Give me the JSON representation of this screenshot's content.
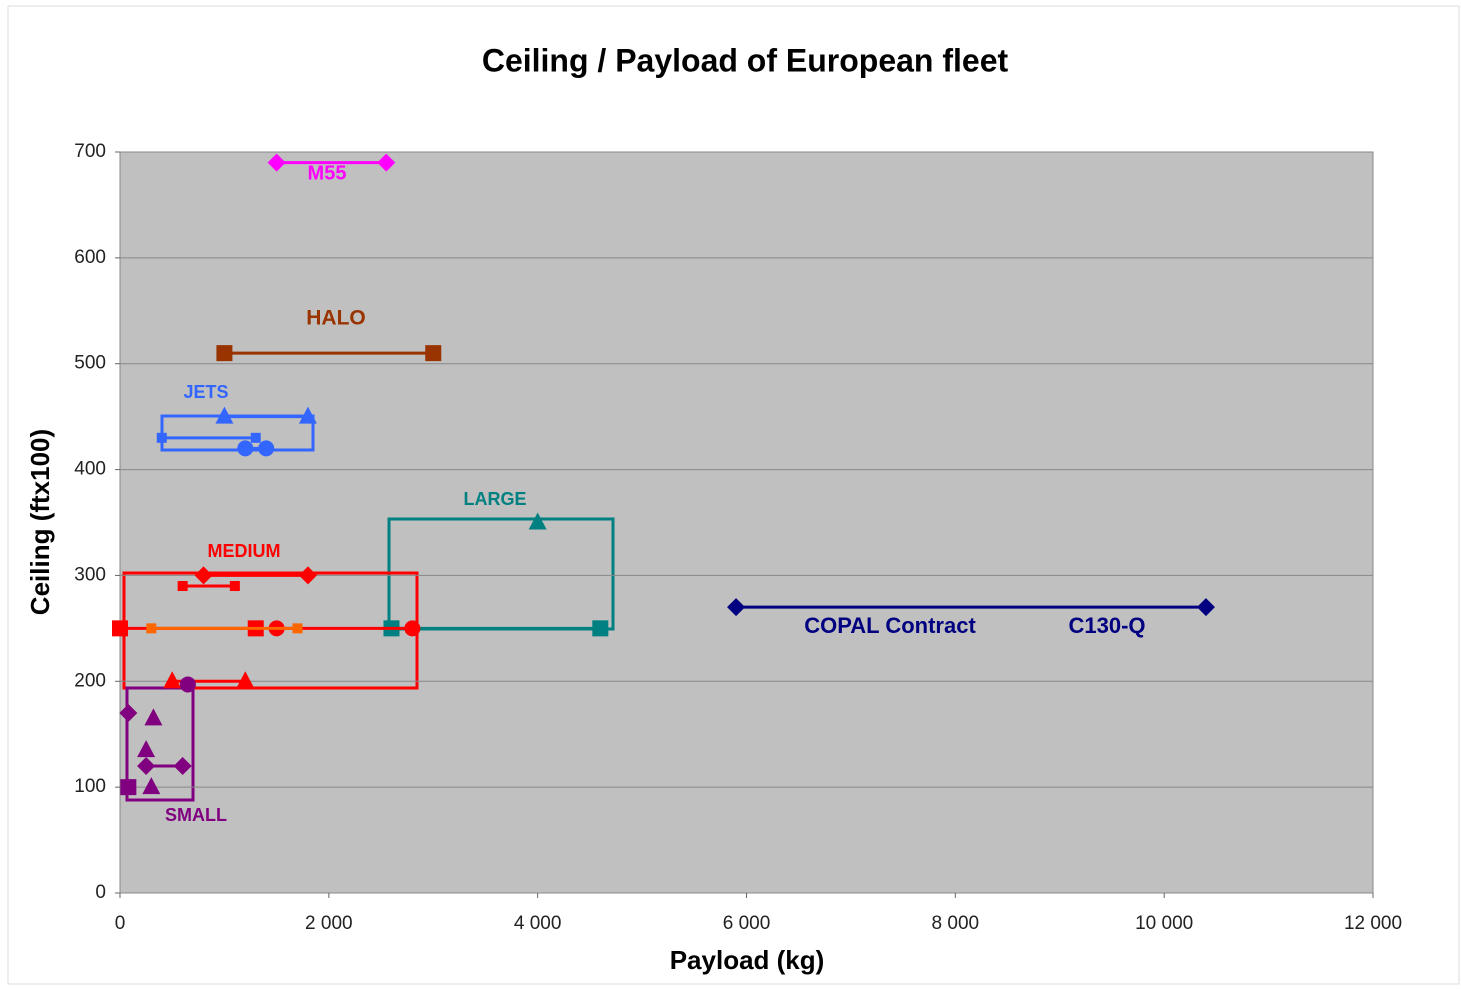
{
  "chart_data": {
    "type": "scatter",
    "title": "Ceiling / Payload of European fleet",
    "x_label": "Payload (kg)",
    "y_label": "Ceiling (ftx100)",
    "xlim": [
      0,
      12000
    ],
    "xticks": [
      0,
      {
        "value": 2000,
        "label": "2 000"
      },
      {
        "value": 4000,
        "label": "4 000"
      },
      {
        "value": 6000,
        "label": "6 000"
      },
      {
        "value": 8000,
        "label": "8 000"
      },
      {
        "value": 10000,
        "label": "10 000"
      },
      {
        "value": 12000,
        "label": "12 000"
      }
    ],
    "ylim": [
      0,
      700
    ],
    "yticks": [
      0,
      100,
      200,
      300,
      400,
      500,
      600,
      700
    ],
    "grid": true,
    "series": [
      {
        "color": "#ff00ff",
        "marker": "diamond",
        "x": [
          1500,
          2550
        ],
        "values": [
          690,
          690
        ]
      },
      {
        "color": "#993300",
        "marker": "square",
        "x": [
          1000,
          3000
        ],
        "values": [
          510,
          510
        ]
      },
      {
        "color": "#3366ff",
        "marker": "triangle",
        "x": [
          1000,
          1800
        ],
        "values": [
          450,
          450
        ]
      },
      {
        "color": "#3366ff",
        "marker": "small-square",
        "x": [
          400,
          1300
        ],
        "values": [
          430,
          430
        ]
      },
      {
        "color": "#3366ff",
        "marker": "circle",
        "x": [
          1200,
          1400
        ],
        "values": [
          420,
          420
        ]
      },
      {
        "color": "#008080",
        "marker": "triangle",
        "x": [
          4000
        ],
        "values": [
          350
        ]
      },
      {
        "color": "#008080",
        "marker": "square",
        "x": [
          2600,
          4600
        ],
        "values": [
          250,
          250
        ]
      },
      {
        "color": "#ff0000",
        "marker": "diamond",
        "x": [
          800,
          1800
        ],
        "values": [
          300,
          300
        ]
      },
      {
        "color": "#ff0000",
        "marker": "small-square",
        "x": [
          600,
          1100
        ],
        "values": [
          290,
          290
        ]
      },
      {
        "color": "#ff0000",
        "marker": "square",
        "x": [
          0,
          1300
        ],
        "values": [
          250,
          250
        ]
      },
      {
        "color": "#ff0000",
        "marker": "circle",
        "x": [
          1500,
          2800
        ],
        "values": [
          250,
          250
        ]
      },
      {
        "color": "#ff0000",
        "marker": "triangle",
        "x": [
          500,
          1200
        ],
        "values": [
          200,
          200
        ]
      },
      {
        "color": "#ff6600",
        "marker": "small-square",
        "x": [
          300,
          1700
        ],
        "values": [
          250,
          250
        ]
      },
      {
        "color": "#000080",
        "marker": "diamond",
        "x": [
          5900,
          10400
        ],
        "values": [
          270,
          270
        ]
      },
      {
        "color": "#800080",
        "marker": "diamond",
        "x": [
          250,
          600
        ],
        "values": [
          120,
          120
        ]
      },
      {
        "color": "#800080",
        "marker": "diamond",
        "x": [
          80
        ],
        "values": [
          170
        ]
      },
      {
        "color": "#800080",
        "marker": "triangle",
        "line": false,
        "x": [
          320,
          250,
          300
        ],
        "values": [
          165,
          135,
          100
        ]
      },
      {
        "color": "#800080",
        "marker": "square",
        "x": [
          80
        ],
        "values": [
          100
        ]
      },
      {
        "color": "#800080",
        "marker": "circle",
        "x": [
          650
        ],
        "values": [
          197
        ]
      }
    ],
    "annotations": [
      {
        "text": "M55",
        "color": "#ff00ff"
      },
      {
        "text": "HALO",
        "color": "#993300"
      },
      {
        "text": "JETS",
        "color": "#3366ff"
      },
      {
        "text": "LARGE",
        "color": "#008080"
      },
      {
        "text": "MEDIUM",
        "color": "#ff0000"
      },
      {
        "text": "COPAL Contract",
        "color": "#000080"
      },
      {
        "text": "C130-Q",
        "color": "#000080"
      },
      {
        "text": "SMALL",
        "color": "#800080"
      }
    ]
  }
}
